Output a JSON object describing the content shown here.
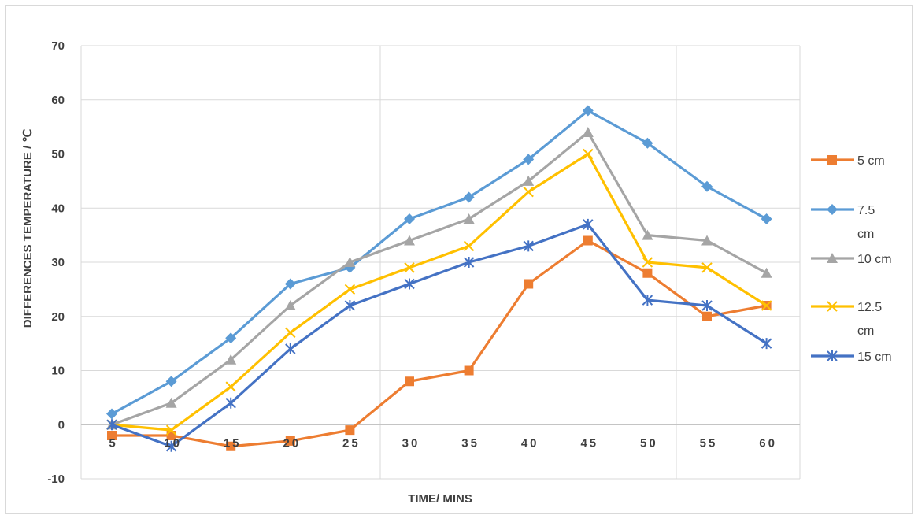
{
  "chart_data": {
    "type": "line",
    "title": "",
    "xlabel": "TIME/ MINS",
    "ylabel": "DIFFERENCES TEMPERATURE / ℃",
    "categories": [
      "5",
      "10",
      "15",
      "20",
      "25",
      "30",
      "35",
      "40",
      "45",
      "50",
      "55",
      "60"
    ],
    "ylim": [
      -10,
      70
    ],
    "yticks": [
      "-10",
      "0",
      "10",
      "20",
      "30",
      "40",
      "50",
      "60",
      "70"
    ],
    "grid": true,
    "legend_position": "right",
    "series": [
      {
        "name": "5 cm",
        "legend_lines": [
          "5 cm"
        ],
        "color": "#ed7d31",
        "marker": "square",
        "values": [
          -2,
          -2,
          -4,
          -3,
          -1,
          8,
          10,
          26,
          34,
          28,
          20,
          22
        ]
      },
      {
        "name": "7.5 cm",
        "legend_lines": [
          "7.5",
          "cm"
        ],
        "color": "#5b9bd5",
        "marker": "diamond",
        "values": [
          2,
          8,
          16,
          26,
          29,
          38,
          42,
          49,
          58,
          52,
          44,
          38
        ]
      },
      {
        "name": "10 cm",
        "legend_lines": [
          "10 cm"
        ],
        "color": "#a5a5a5",
        "marker": "triangle",
        "values": [
          0,
          4,
          12,
          22,
          30,
          34,
          38,
          45,
          54,
          35,
          34,
          28
        ]
      },
      {
        "name": "12.5 cm",
        "legend_lines": [
          "12.5",
          "cm"
        ],
        "color": "#ffc000",
        "marker": "x",
        "values": [
          0,
          -1,
          7,
          17,
          25,
          29,
          33,
          43,
          50,
          30,
          29,
          22
        ]
      },
      {
        "name": "15 cm",
        "legend_lines": [
          "15 cm"
        ],
        "color": "#4472c4",
        "marker": "star",
        "values": [
          0,
          -4,
          4,
          14,
          22,
          26,
          30,
          33,
          37,
          23,
          22,
          15
        ]
      }
    ]
  }
}
